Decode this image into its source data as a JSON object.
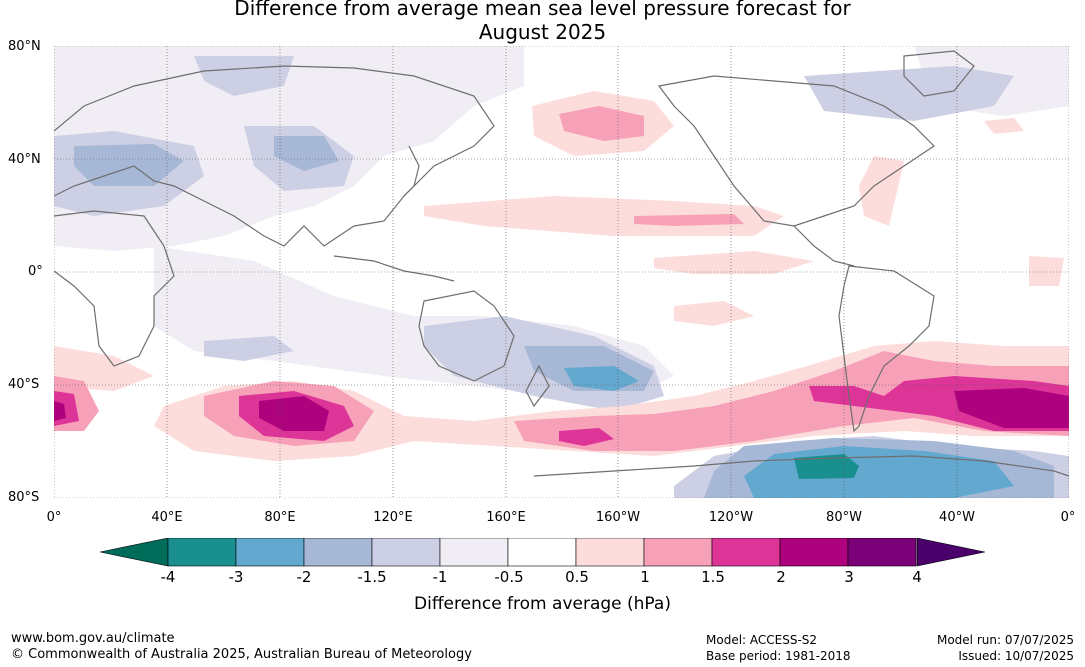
{
  "title_line1": "Difference from average mean sea level pressure forecast for",
  "title_line2": "August 2025",
  "lat_labels": [
    "80°N",
    "40°N",
    "0°",
    "40°S",
    "80°S"
  ],
  "lon_labels": [
    "0°",
    "40°E",
    "80°E",
    "120°E",
    "160°E",
    "160°W",
    "120°W",
    "80°W",
    "40°W",
    "0°"
  ],
  "colorbar": {
    "ticks": [
      "-4",
      "-3",
      "-2",
      "-1.5",
      "-1",
      "-0.5",
      "0.5",
      "1",
      "1.5",
      "2",
      "3",
      "4"
    ],
    "colors": [
      "#1a8f8f",
      "#63a8cf",
      "#a6b8d6",
      "#cdd0e4",
      "#f1edf4",
      "#ffffff",
      "#fddcdc",
      "#f7a1b9",
      "#dd3497",
      "#ae017e",
      "#7a0177"
    ],
    "low_extend_color": "#006d5b",
    "high_extend_color": "#49006a",
    "label": "Difference from average (hPa)"
  },
  "footer": {
    "website": "www.bom.gov.au/climate",
    "copyright": "© Commonwealth of Australia 2025, Australian Bureau of Meteorology",
    "model": "Model: ACCESS-S2",
    "base_period": "Base period: 1981-2018",
    "model_run": "Model run: 07/07/2025",
    "issued": "Issued: 10/07/2025"
  }
}
